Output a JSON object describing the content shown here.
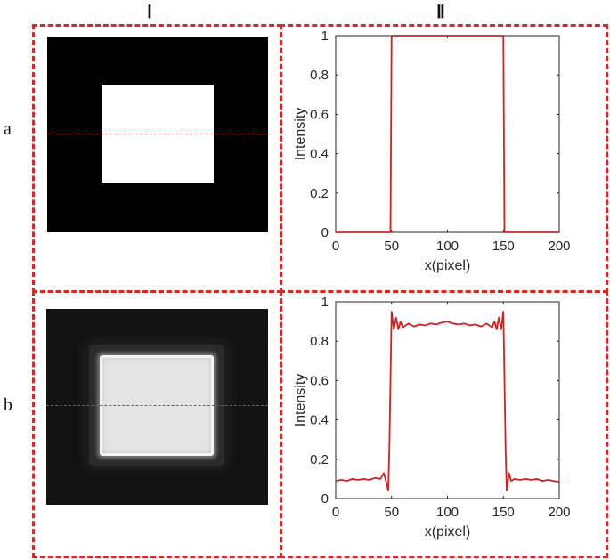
{
  "columns": [
    "Ⅰ",
    "Ⅱ"
  ],
  "rows": [
    "a",
    "b"
  ],
  "chart_data": [
    {
      "type": "line",
      "row": "a",
      "xlabel": "x(pixel)",
      "ylabel": "Intensity",
      "xlim": [
        0,
        200
      ],
      "ylim": [
        0,
        1
      ],
      "xticks": [
        0,
        50,
        100,
        150,
        200
      ],
      "yticks": [
        0,
        0.2,
        0.4,
        0.6,
        0.8,
        1
      ],
      "ytick_labels": [
        "0",
        "0.2",
        "0.4",
        "0.6",
        "0.8",
        "1"
      ],
      "grid": false,
      "series": [
        {
          "color": "#d42020",
          "x": [
            0,
            49,
            50,
            150,
            151,
            200
          ],
          "y": [
            0,
            0,
            1,
            1,
            0,
            0
          ]
        }
      ]
    },
    {
      "type": "line",
      "row": "b",
      "xlabel": "x(pixel)",
      "ylabel": "Intensity",
      "xlim": [
        0,
        200
      ],
      "ylim": [
        0,
        1
      ],
      "xticks": [
        0,
        50,
        100,
        150,
        200
      ],
      "yticks": [
        0,
        0.2,
        0.4,
        0.6,
        0.8,
        1
      ],
      "ytick_labels": [
        "0",
        "0.2",
        "0.4",
        "0.6",
        "0.8",
        "1"
      ],
      "grid": false,
      "series": [
        {
          "color": "#d42020",
          "x": [
            0,
            5,
            10,
            15,
            20,
            25,
            30,
            35,
            40,
            43,
            45,
            47,
            48,
            50,
            52,
            54,
            56,
            58,
            60,
            65,
            70,
            75,
            80,
            85,
            90,
            95,
            100,
            105,
            110,
            115,
            120,
            125,
            130,
            135,
            140,
            142,
            144,
            146,
            148,
            150,
            152,
            153,
            155,
            157,
            160,
            165,
            170,
            175,
            180,
            185,
            190,
            195,
            200
          ],
          "y": [
            0.09,
            0.095,
            0.09,
            0.1,
            0.095,
            0.1,
            0.095,
            0.105,
            0.1,
            0.13,
            0.09,
            0.04,
            0.25,
            0.95,
            0.86,
            0.92,
            0.86,
            0.9,
            0.87,
            0.89,
            0.875,
            0.885,
            0.88,
            0.89,
            0.885,
            0.895,
            0.9,
            0.89,
            0.885,
            0.89,
            0.88,
            0.885,
            0.875,
            0.89,
            0.87,
            0.9,
            0.86,
            0.92,
            0.86,
            0.95,
            0.25,
            0.04,
            0.13,
            0.09,
            0.1,
            0.095,
            0.1,
            0.095,
            0.1,
            0.09,
            0.095,
            0.09,
            0.085
          ]
        }
      ]
    }
  ]
}
